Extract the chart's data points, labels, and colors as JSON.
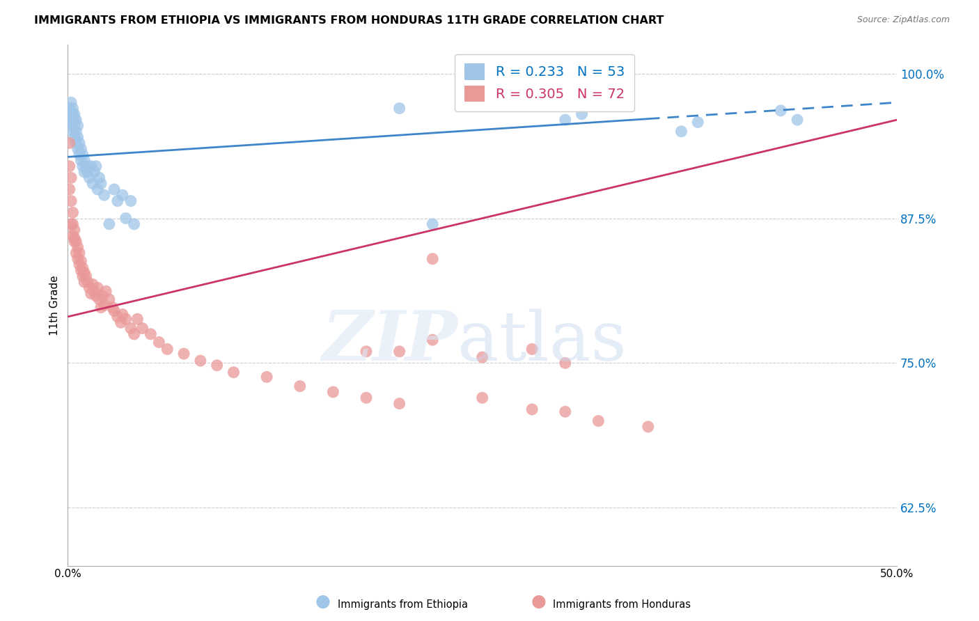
{
  "title": "IMMIGRANTS FROM ETHIOPIA VS IMMIGRANTS FROM HONDURAS 11TH GRADE CORRELATION CHART",
  "source": "Source: ZipAtlas.com",
  "ylabel": "11th Grade",
  "xlim": [
    0.0,
    0.5
  ],
  "ylim": [
    0.575,
    1.025
  ],
  "yticks": [
    0.625,
    0.75,
    0.875,
    1.0
  ],
  "ytick_labels": [
    "62.5%",
    "75.0%",
    "87.5%",
    "100.0%"
  ],
  "blue_R": 0.233,
  "blue_N": 53,
  "pink_R": 0.305,
  "pink_N": 72,
  "blue_color": "#9fc5e8",
  "pink_color": "#ea9999",
  "blue_line_color": "#3d85c8",
  "pink_line_color": "#cc3366",
  "legend_color_blue": "#0070c0",
  "legend_color_pink": "#cc3366",
  "blue_line_x0": 0.0,
  "blue_line_y0": 0.928,
  "blue_line_x1": 0.5,
  "blue_line_y1": 0.975,
  "pink_line_x0": 0.0,
  "pink_line_y0": 0.79,
  "pink_line_x1": 0.5,
  "pink_line_y1": 0.96,
  "blue_scatter_x": [
    0.001,
    0.001,
    0.002,
    0.002,
    0.002,
    0.003,
    0.003,
    0.003,
    0.003,
    0.004,
    0.004,
    0.004,
    0.004,
    0.005,
    0.005,
    0.005,
    0.006,
    0.006,
    0.006,
    0.007,
    0.007,
    0.008,
    0.008,
    0.009,
    0.009,
    0.01,
    0.01,
    0.011,
    0.012,
    0.013,
    0.014,
    0.015,
    0.016,
    0.017,
    0.018,
    0.019,
    0.02,
    0.022,
    0.025,
    0.028,
    0.03,
    0.033,
    0.035,
    0.038,
    0.04,
    0.2,
    0.22,
    0.3,
    0.31,
    0.37,
    0.38,
    0.43,
    0.44
  ],
  "blue_scatter_y": [
    0.96,
    0.97,
    0.955,
    0.965,
    0.975,
    0.95,
    0.96,
    0.965,
    0.97,
    0.945,
    0.955,
    0.96,
    0.965,
    0.94,
    0.95,
    0.96,
    0.935,
    0.945,
    0.955,
    0.93,
    0.94,
    0.925,
    0.935,
    0.92,
    0.93,
    0.915,
    0.925,
    0.92,
    0.915,
    0.91,
    0.92,
    0.905,
    0.915,
    0.92,
    0.9,
    0.91,
    0.905,
    0.895,
    0.87,
    0.9,
    0.89,
    0.895,
    0.875,
    0.89,
    0.87,
    0.97,
    0.87,
    0.96,
    0.965,
    0.95,
    0.958,
    0.968,
    0.96
  ],
  "pink_scatter_x": [
    0.001,
    0.001,
    0.001,
    0.002,
    0.002,
    0.002,
    0.003,
    0.003,
    0.003,
    0.004,
    0.004,
    0.004,
    0.005,
    0.005,
    0.006,
    0.006,
    0.007,
    0.007,
    0.008,
    0.008,
    0.009,
    0.009,
    0.01,
    0.01,
    0.011,
    0.012,
    0.013,
    0.014,
    0.015,
    0.016,
    0.017,
    0.018,
    0.019,
    0.02,
    0.021,
    0.022,
    0.023,
    0.025,
    0.027,
    0.028,
    0.03,
    0.032,
    0.033,
    0.035,
    0.038,
    0.04,
    0.042,
    0.045,
    0.05,
    0.055,
    0.06,
    0.07,
    0.08,
    0.09,
    0.1,
    0.12,
    0.14,
    0.16,
    0.18,
    0.2,
    0.22,
    0.25,
    0.28,
    0.3,
    0.32,
    0.35,
    0.18,
    0.2,
    0.22,
    0.25,
    0.28,
    0.3
  ],
  "pink_scatter_y": [
    0.94,
    0.92,
    0.9,
    0.91,
    0.89,
    0.87,
    0.88,
    0.86,
    0.87,
    0.858,
    0.865,
    0.855,
    0.845,
    0.855,
    0.84,
    0.85,
    0.835,
    0.845,
    0.83,
    0.838,
    0.825,
    0.832,
    0.82,
    0.828,
    0.825,
    0.82,
    0.815,
    0.81,
    0.818,
    0.812,
    0.808,
    0.815,
    0.805,
    0.798,
    0.808,
    0.8,
    0.812,
    0.805,
    0.798,
    0.795,
    0.79,
    0.785,
    0.792,
    0.788,
    0.78,
    0.775,
    0.788,
    0.78,
    0.775,
    0.768,
    0.762,
    0.758,
    0.752,
    0.748,
    0.742,
    0.738,
    0.73,
    0.725,
    0.72,
    0.715,
    0.84,
    0.72,
    0.71,
    0.708,
    0.7,
    0.695,
    0.76,
    0.76,
    0.77,
    0.755,
    0.762,
    0.75
  ]
}
